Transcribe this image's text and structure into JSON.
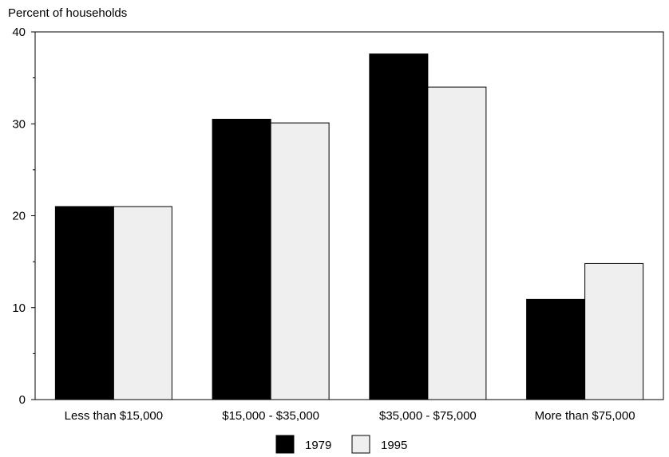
{
  "chart_data": {
    "type": "bar",
    "title": "",
    "xlabel": "",
    "ylabel": "Percent of households",
    "ylim": [
      0,
      40
    ],
    "yticks": [
      "0",
      "10",
      "20",
      "30",
      "40"
    ],
    "minor_ticks": [
      5,
      15,
      25,
      35
    ],
    "categories": [
      "Less than $15,000",
      "$15,000 - $35,000",
      "$35,000 - $75,000",
      "More than $75,000"
    ],
    "series": [
      {
        "name": "1979",
        "values": [
          21.0,
          30.5,
          37.6,
          10.9
        ],
        "color": "#000000"
      },
      {
        "name": "1995",
        "values": [
          21.0,
          30.1,
          34.0,
          14.8
        ],
        "color": "#efefef"
      }
    ],
    "grid": false,
    "legend_position": "bottom-center"
  }
}
